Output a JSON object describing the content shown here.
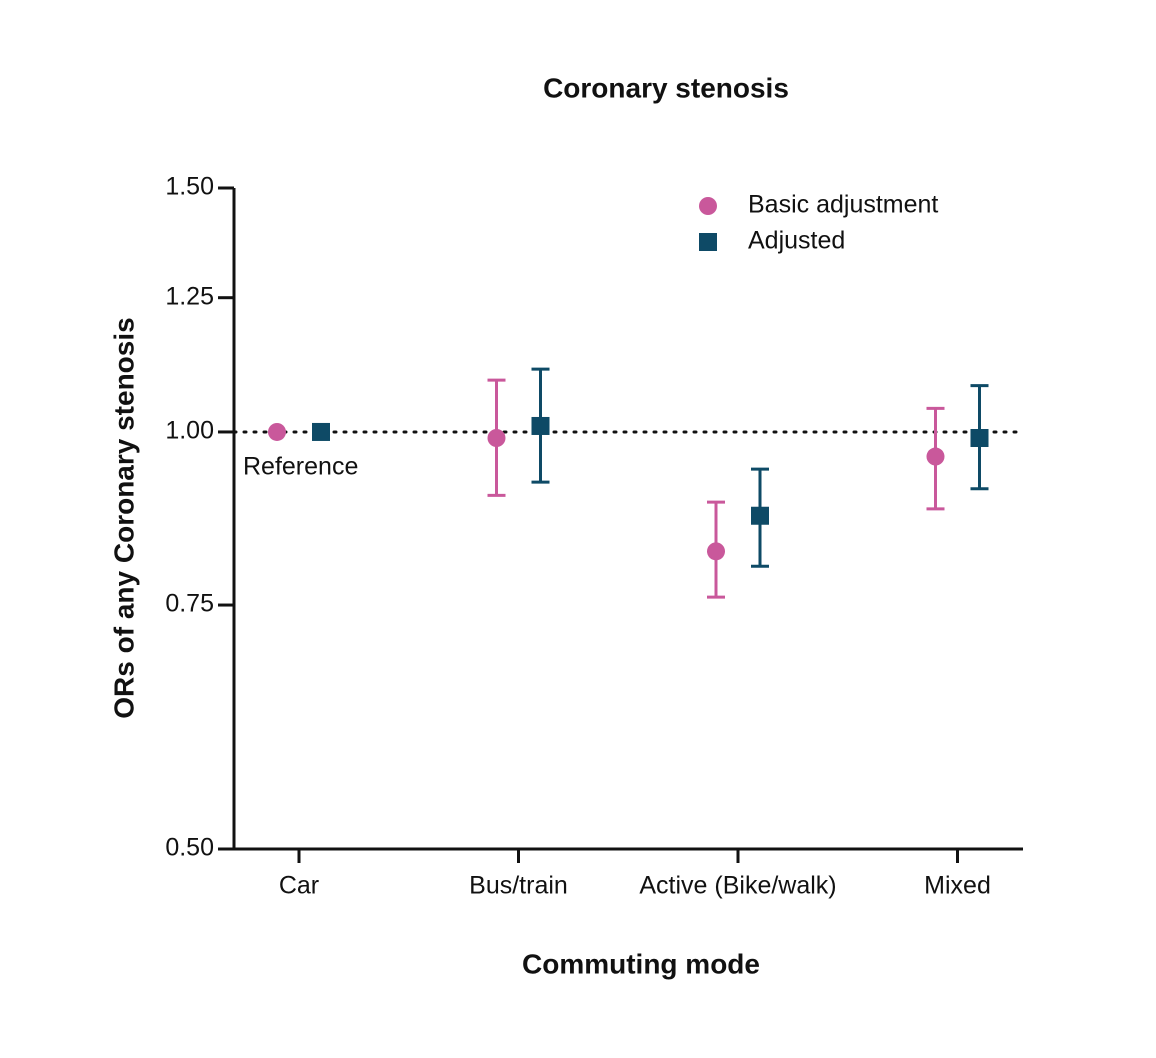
{
  "chart_data": {
    "type": "errorbar",
    "title": "Coronary stenosis",
    "x_label": "Commuting mode",
    "y_label": "ORs of any Coronary stenosis",
    "categories": [
      "Car",
      "Bus/train",
      "Active (Bike/walk)",
      "Mixed"
    ],
    "series": [
      {
        "name": "Basic adjustment",
        "color": "#c9589b",
        "marker": "circle",
        "values": [
          1.0,
          0.99,
          0.82,
          0.96
        ],
        "lower": [
          null,
          0.9,
          0.76,
          0.88
        ],
        "upper": [
          null,
          1.09,
          0.89,
          1.04
        ]
      },
      {
        "name": "Adjusted",
        "color": "#0e4a66",
        "marker": "square",
        "values": [
          1.0,
          1.01,
          0.87,
          0.99
        ],
        "lower": [
          null,
          0.92,
          0.8,
          0.91
        ],
        "upper": [
          null,
          1.11,
          0.94,
          1.08
        ]
      }
    ],
    "ylim": [
      0.5,
      1.5
    ],
    "yscale": "log",
    "yticks": [
      {
        "value": 0.5,
        "label": "0.50"
      },
      {
        "value": 0.75,
        "label": "0.75"
      },
      {
        "value": 1,
        "label": "1.00"
      },
      {
        "value": 1.25,
        "label": "1.25"
      },
      {
        "value": 1.5,
        "label": "1.50"
      }
    ],
    "reference_line": 1,
    "annotation": "Reference",
    "legend": "upper right"
  }
}
